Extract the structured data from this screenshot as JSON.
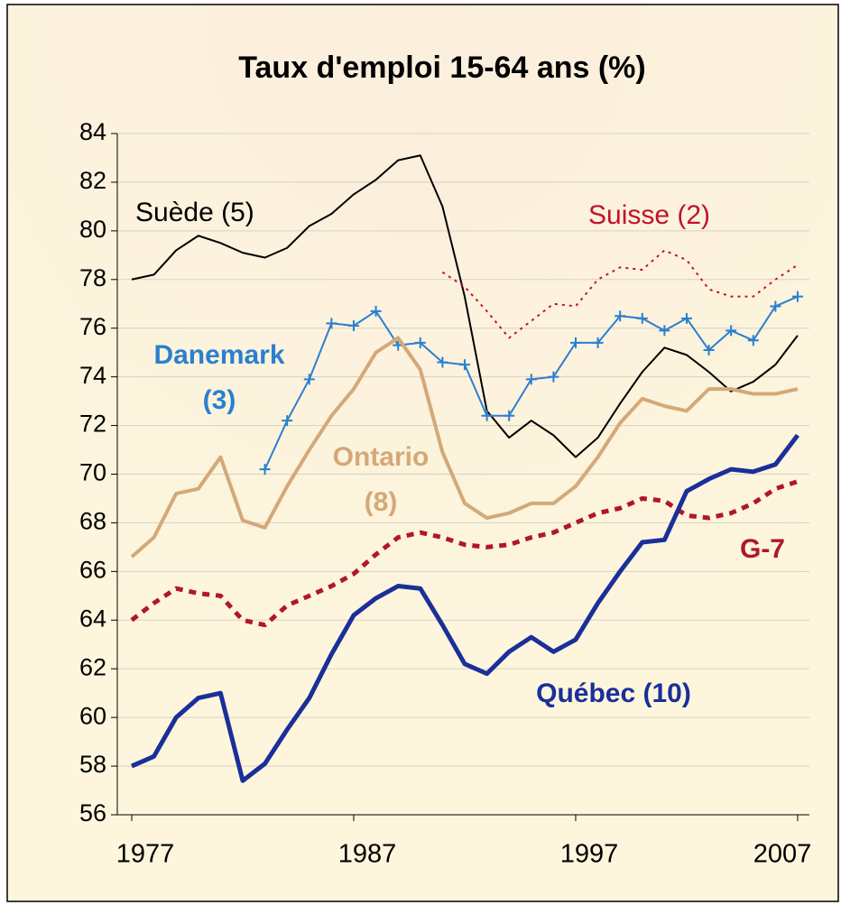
{
  "chart_data": {
    "type": "line",
    "title": "Taux d'emploi 15-64 ans (%)",
    "x": [
      1977,
      1978,
      1979,
      1980,
      1981,
      1982,
      1983,
      1984,
      1985,
      1986,
      1987,
      1988,
      1989,
      1990,
      1991,
      1992,
      1993,
      1994,
      1995,
      1996,
      1997,
      1998,
      1999,
      2000,
      2001,
      2002,
      2003,
      2004,
      2005,
      2006,
      2007
    ],
    "xlim": [
      1976.35,
      2007.53
    ],
    "xticks": [
      1977,
      1987,
      1997,
      2007
    ],
    "ylim": [
      56,
      84
    ],
    "yticks": [
      56,
      58,
      60,
      62,
      64,
      66,
      68,
      70,
      72,
      74,
      76,
      78,
      80,
      82,
      84
    ],
    "grid": true,
    "series": [
      {
        "name": "Suède (5)",
        "color": "#000000",
        "values": [
          78.0,
          78.2,
          79.2,
          79.8,
          79.5,
          79.1,
          78.9,
          79.3,
          80.2,
          80.7,
          81.5,
          82.1,
          82.9,
          83.1,
          81.0,
          77.3,
          72.6,
          71.5,
          72.2,
          71.6,
          70.7,
          71.5,
          72.9,
          74.2,
          75.2,
          74.9,
          74.2,
          73.4,
          73.8,
          74.5,
          75.7
        ]
      },
      {
        "name": "Suisse (2)",
        "color": "#c0142b",
        "values": [
          null,
          null,
          null,
          null,
          null,
          null,
          null,
          null,
          null,
          null,
          null,
          null,
          null,
          null,
          78.3,
          77.7,
          76.7,
          75.6,
          76.3,
          77.0,
          76.9,
          78.0,
          78.5,
          78.4,
          79.2,
          78.8,
          77.6,
          77.3,
          77.3,
          78.0,
          78.6
        ]
      },
      {
        "name": "Danemark (3)",
        "color": "#2a7fd0",
        "values": [
          null,
          null,
          null,
          null,
          null,
          null,
          70.2,
          72.2,
          73.9,
          76.2,
          76.1,
          76.7,
          75.3,
          75.4,
          74.6,
          74.5,
          72.4,
          72.4,
          73.9,
          74.0,
          75.4,
          75.4,
          76.5,
          76.4,
          75.9,
          76.4,
          75.1,
          75.9,
          75.5,
          76.9,
          77.3
        ]
      },
      {
        "name": "Ontario (8)",
        "color": "#d4a878",
        "values": [
          66.6,
          67.4,
          69.2,
          69.4,
          70.7,
          68.1,
          67.8,
          69.5,
          71.0,
          72.4,
          73.5,
          75.0,
          75.6,
          74.3,
          70.9,
          68.8,
          68.2,
          68.4,
          68.8,
          68.8,
          69.5,
          70.7,
          72.1,
          73.1,
          72.8,
          72.6,
          73.5,
          73.5,
          73.3,
          73.3,
          73.5
        ]
      },
      {
        "name": "G-7",
        "color": "#b0172a",
        "values": [
          64.0,
          64.7,
          65.3,
          65.1,
          65.0,
          64.0,
          63.8,
          64.6,
          65.0,
          65.4,
          65.9,
          66.7,
          67.4,
          67.6,
          67.4,
          67.1,
          67.0,
          67.1,
          67.4,
          67.6,
          68.0,
          68.4,
          68.6,
          69.0,
          68.9,
          68.3,
          68.2,
          68.4,
          68.8,
          69.4,
          69.7
        ]
      },
      {
        "name": "Québec (10)",
        "color": "#1a2f9a",
        "values": [
          58.0,
          58.4,
          60.0,
          60.8,
          61.0,
          57.4,
          58.1,
          59.5,
          60.8,
          62.6,
          64.2,
          64.9,
          65.4,
          65.3,
          63.8,
          62.2,
          61.8,
          62.7,
          63.3,
          62.7,
          63.2,
          64.7,
          66.0,
          67.2,
          67.3,
          69.3,
          69.8,
          70.2,
          70.1,
          70.4,
          71.6
        ]
      }
    ]
  }
}
